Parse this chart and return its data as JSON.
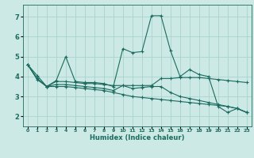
{
  "title": "",
  "xlabel": "Humidex (Indice chaleur)",
  "xlim": [
    -0.5,
    23.5
  ],
  "ylim": [
    1.5,
    7.6
  ],
  "yticks": [
    2,
    3,
    4,
    5,
    6,
    7
  ],
  "xticks": [
    0,
    1,
    2,
    3,
    4,
    5,
    6,
    7,
    8,
    9,
    10,
    11,
    12,
    13,
    14,
    15,
    16,
    17,
    18,
    19,
    20,
    21,
    22,
    23
  ],
  "bg_color": "#cce9e5",
  "grid_color": "#aad4ce",
  "line_color": "#1a6b5e",
  "lines": [
    [
      4.6,
      4.05,
      3.5,
      3.8,
      5.0,
      3.75,
      3.7,
      3.7,
      3.65,
      3.5,
      5.4,
      5.2,
      5.25,
      7.05,
      7.05,
      5.3,
      4.0,
      4.35,
      4.1,
      4.0,
      2.5,
      2.2,
      2.4,
      2.2
    ],
    [
      4.6,
      3.9,
      3.5,
      3.75,
      3.75,
      3.7,
      3.65,
      3.65,
      3.6,
      3.55,
      3.55,
      3.55,
      3.55,
      3.55,
      3.9,
      3.9,
      3.95,
      3.95,
      3.95,
      3.9,
      3.85,
      3.8,
      3.75,
      3.7
    ],
    [
      4.6,
      3.9,
      3.5,
      3.6,
      3.6,
      3.55,
      3.5,
      3.45,
      3.4,
      3.3,
      3.55,
      3.4,
      3.45,
      3.5,
      3.5,
      3.2,
      3.0,
      2.9,
      2.8,
      2.7,
      2.6,
      2.5,
      2.4,
      2.2
    ],
    [
      4.6,
      3.85,
      3.5,
      3.5,
      3.5,
      3.45,
      3.4,
      3.35,
      3.3,
      3.2,
      3.1,
      3.0,
      2.95,
      2.9,
      2.85,
      2.8,
      2.75,
      2.7,
      2.65,
      2.6,
      2.55,
      2.5,
      2.4,
      2.2
    ]
  ]
}
